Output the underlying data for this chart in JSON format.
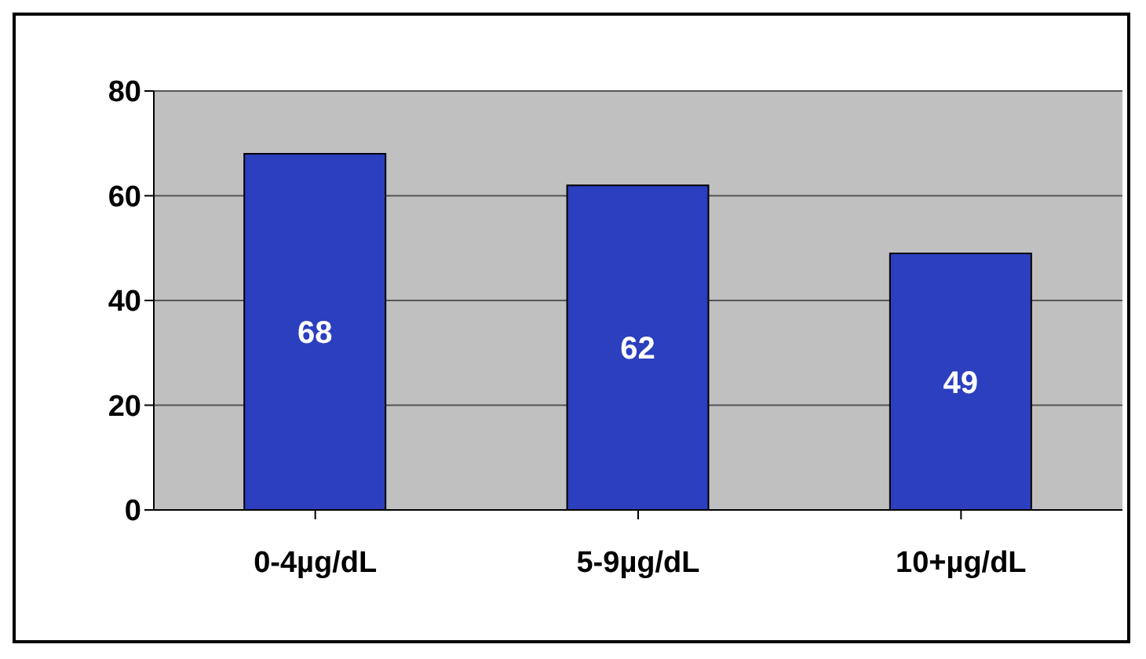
{
  "chart_data": {
    "type": "bar",
    "categories": [
      "0-4µg/dL",
      "5-9µg/dL",
      "10+µg/dL"
    ],
    "values": [
      68,
      62,
      49
    ],
    "color": "#2b3fbf",
    "ylim": [
      0,
      80
    ],
    "yticks": [
      0,
      20,
      40,
      60,
      80
    ],
    "grid": "y",
    "data_labels": true
  }
}
